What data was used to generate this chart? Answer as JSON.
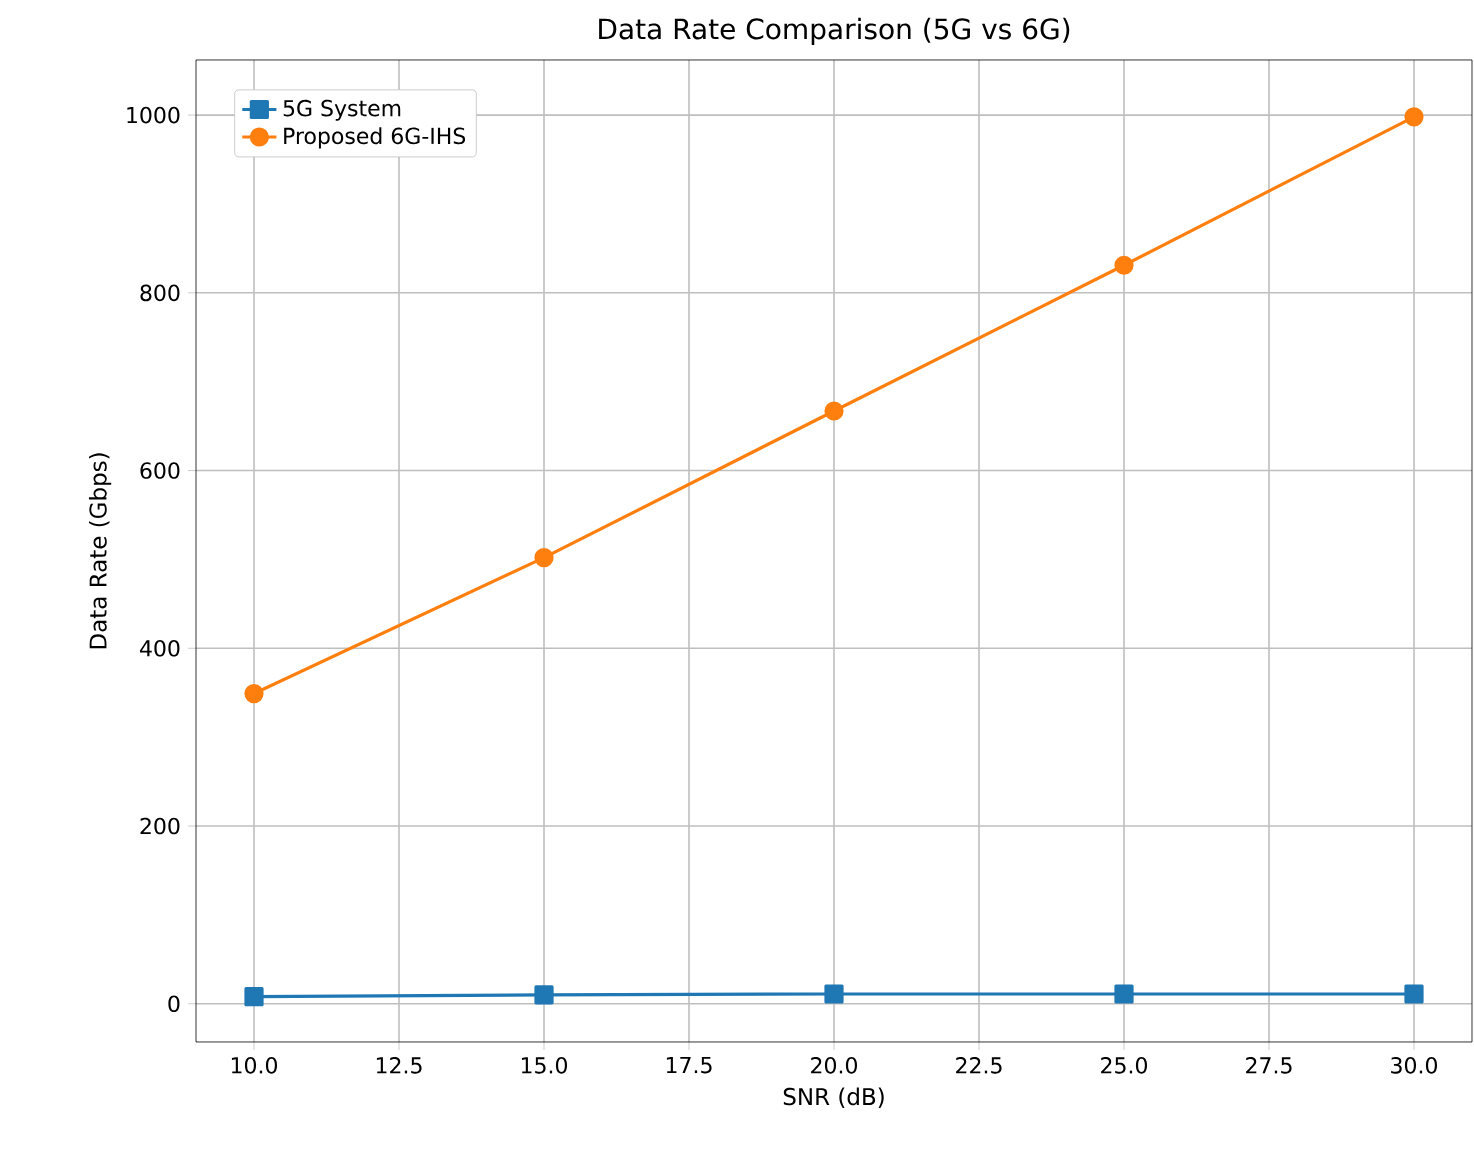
{
  "chart_data": {
    "type": "line",
    "title": "Data Rate Comparison (5G vs 6G)",
    "xlabel": "SNR (dB)",
    "ylabel": "Data Rate (Gbps)",
    "x": [
      10,
      15,
      20,
      25,
      30
    ],
    "series": [
      {
        "name": "5G System",
        "color": "#1f77b4",
        "marker": "square",
        "values": [
          8,
          10,
          11,
          11,
          11
        ]
      },
      {
        "name": "Proposed 6G-IHS",
        "color": "#ff7f0e",
        "marker": "circle",
        "values": [
          349,
          502,
          667,
          831,
          998
        ]
      }
    ],
    "xlim": [
      9,
      31
    ],
    "ylim": [
      -43,
      1062
    ],
    "xticks": [
      {
        "value": 10,
        "label": "10.0"
      },
      {
        "value": 12.5,
        "label": "12.5"
      },
      {
        "value": 15,
        "label": "15.0"
      },
      {
        "value": 17.5,
        "label": "17.5"
      },
      {
        "value": 20,
        "label": "20.0"
      },
      {
        "value": 22.5,
        "label": "22.5"
      },
      {
        "value": 25,
        "label": "25.0"
      },
      {
        "value": 27.5,
        "label": "27.5"
      },
      {
        "value": 30,
        "label": "30.0"
      }
    ],
    "yticks": [
      0,
      200,
      400,
      600,
      800,
      1000
    ],
    "grid": true,
    "legend": "top left",
    "line_style": "solid"
  }
}
